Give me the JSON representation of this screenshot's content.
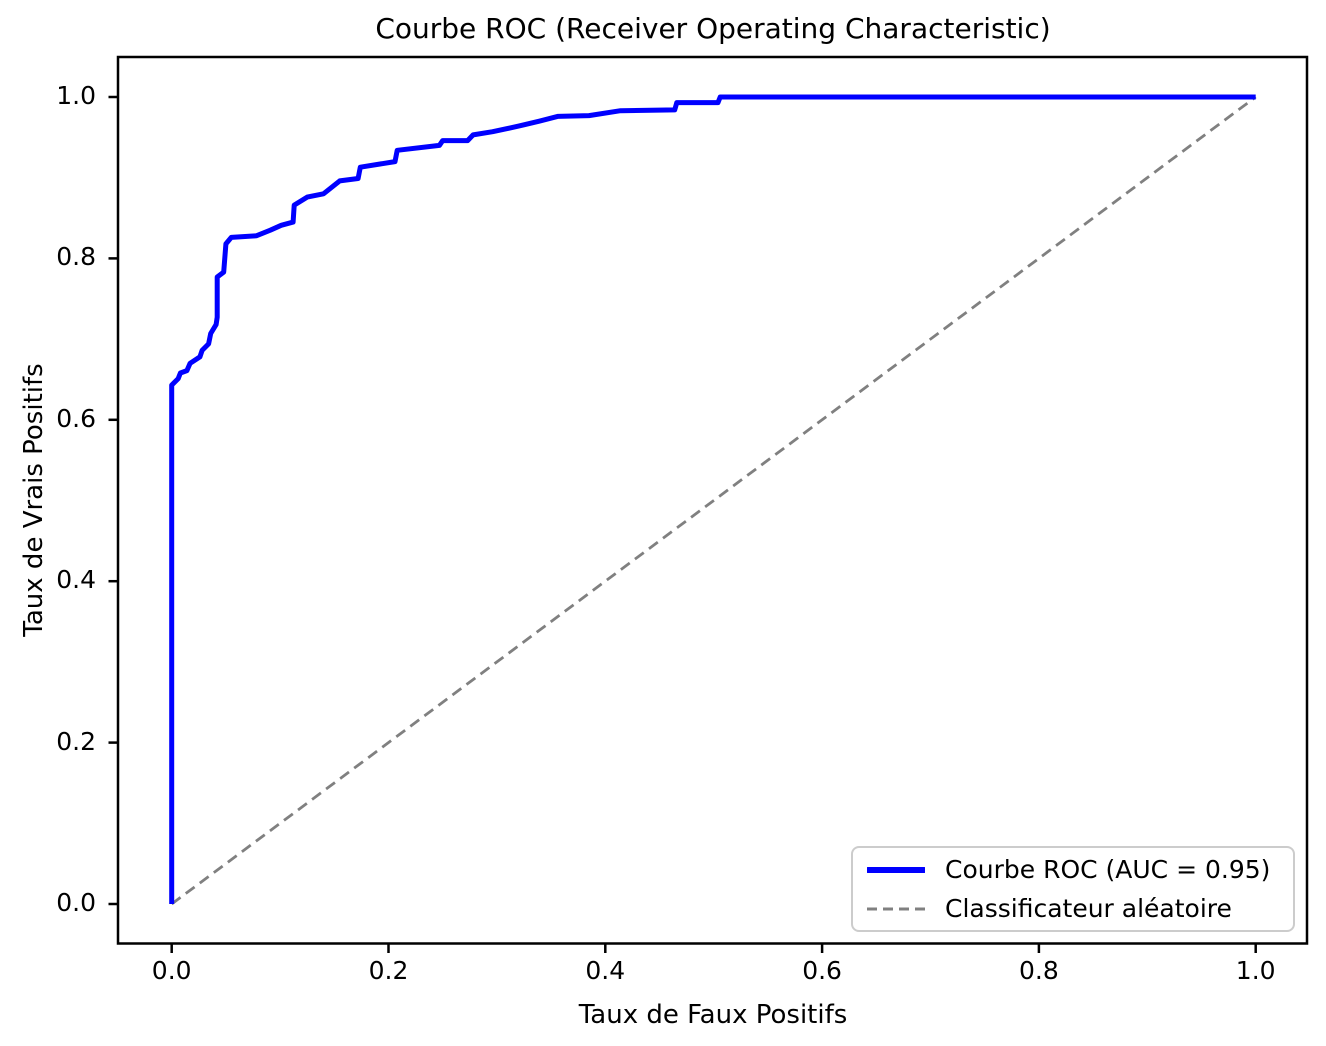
{
  "chart": {
    "title": "Courbe ROC (Receiver Operating Characteristic)",
    "xlabel": "Taux de Faux Positifs",
    "ylabel": "Taux de Vrais Positifs"
  },
  "colors": {
    "roc_curve": "#0000ff",
    "random_classifier": "#808080",
    "spine": "#000000",
    "legend_border": "#cccccc",
    "background": "#ffffff"
  },
  "legend": {
    "position": "lower right",
    "items": [
      {
        "label": "Courbe ROC (AUC = 0.95)",
        "style": "solid",
        "color": "#0000ff"
      },
      {
        "label": "Classificateur aléatoire",
        "style": "dashed",
        "color": "#808080"
      }
    ]
  },
  "chart_data": {
    "type": "line",
    "title": "Courbe ROC (Receiver Operating Characteristic)",
    "xlabel": "Taux de Faux Positifs",
    "ylabel": "Taux de Vrais Positifs",
    "xlim": [
      -0.05,
      1.05
    ],
    "ylim": [
      -0.05,
      1.05
    ],
    "grid": false,
    "auc": 0.95,
    "legend_position": "lower right",
    "x_ticks": [
      {
        "label": "0.0",
        "value": 0.0
      },
      {
        "label": "0.2",
        "value": 0.2
      },
      {
        "label": "0.4",
        "value": 0.4
      },
      {
        "label": "0.6",
        "value": 0.6
      },
      {
        "label": "0.8",
        "value": 0.8
      },
      {
        "label": "1.0",
        "value": 1.0
      }
    ],
    "y_ticks": [
      {
        "label": "0.0",
        "value": 0.0
      },
      {
        "label": "0.2",
        "value": 0.2
      },
      {
        "label": "0.4",
        "value": 0.4
      },
      {
        "label": "0.6",
        "value": 0.6
      },
      {
        "label": "0.8",
        "value": 0.8
      },
      {
        "label": "1.0",
        "value": 1.0
      }
    ],
    "series": [
      {
        "name": "Courbe ROC (AUC = 0.95)",
        "color": "#0000ff",
        "style": "solid",
        "points": [
          [
            0.0,
            0.0
          ],
          [
            0.0,
            0.643
          ],
          [
            0.006,
            0.651
          ],
          [
            0.008,
            0.658
          ],
          [
            0.014,
            0.661
          ],
          [
            0.017,
            0.67
          ],
          [
            0.026,
            0.678
          ],
          [
            0.028,
            0.686
          ],
          [
            0.034,
            0.694
          ],
          [
            0.036,
            0.707
          ],
          [
            0.041,
            0.718
          ],
          [
            0.042,
            0.727
          ],
          [
            0.042,
            0.777
          ],
          [
            0.048,
            0.783
          ],
          [
            0.05,
            0.818
          ],
          [
            0.055,
            0.826
          ],
          [
            0.078,
            0.828
          ],
          [
            0.091,
            0.835
          ],
          [
            0.101,
            0.841
          ],
          [
            0.112,
            0.845
          ],
          [
            0.113,
            0.866
          ],
          [
            0.125,
            0.876
          ],
          [
            0.14,
            0.88
          ],
          [
            0.155,
            0.896
          ],
          [
            0.172,
            0.899
          ],
          [
            0.174,
            0.913
          ],
          [
            0.206,
            0.92
          ],
          [
            0.208,
            0.934
          ],
          [
            0.247,
            0.94
          ],
          [
            0.25,
            0.946
          ],
          [
            0.273,
            0.946
          ],
          [
            0.278,
            0.953
          ],
          [
            0.296,
            0.957
          ],
          [
            0.32,
            0.964
          ],
          [
            0.339,
            0.97
          ],
          [
            0.356,
            0.976
          ],
          [
            0.385,
            0.977
          ],
          [
            0.414,
            0.983
          ],
          [
            0.464,
            0.984
          ],
          [
            0.466,
            0.993
          ],
          [
            0.504,
            0.993
          ],
          [
            0.506,
            1.0
          ],
          [
            1.0,
            1.0
          ]
        ]
      },
      {
        "name": "Classificateur aléatoire",
        "color": "#808080",
        "style": "dashed",
        "points": [
          [
            0.0,
            0.0
          ],
          [
            1.0,
            1.0
          ]
        ]
      }
    ]
  }
}
